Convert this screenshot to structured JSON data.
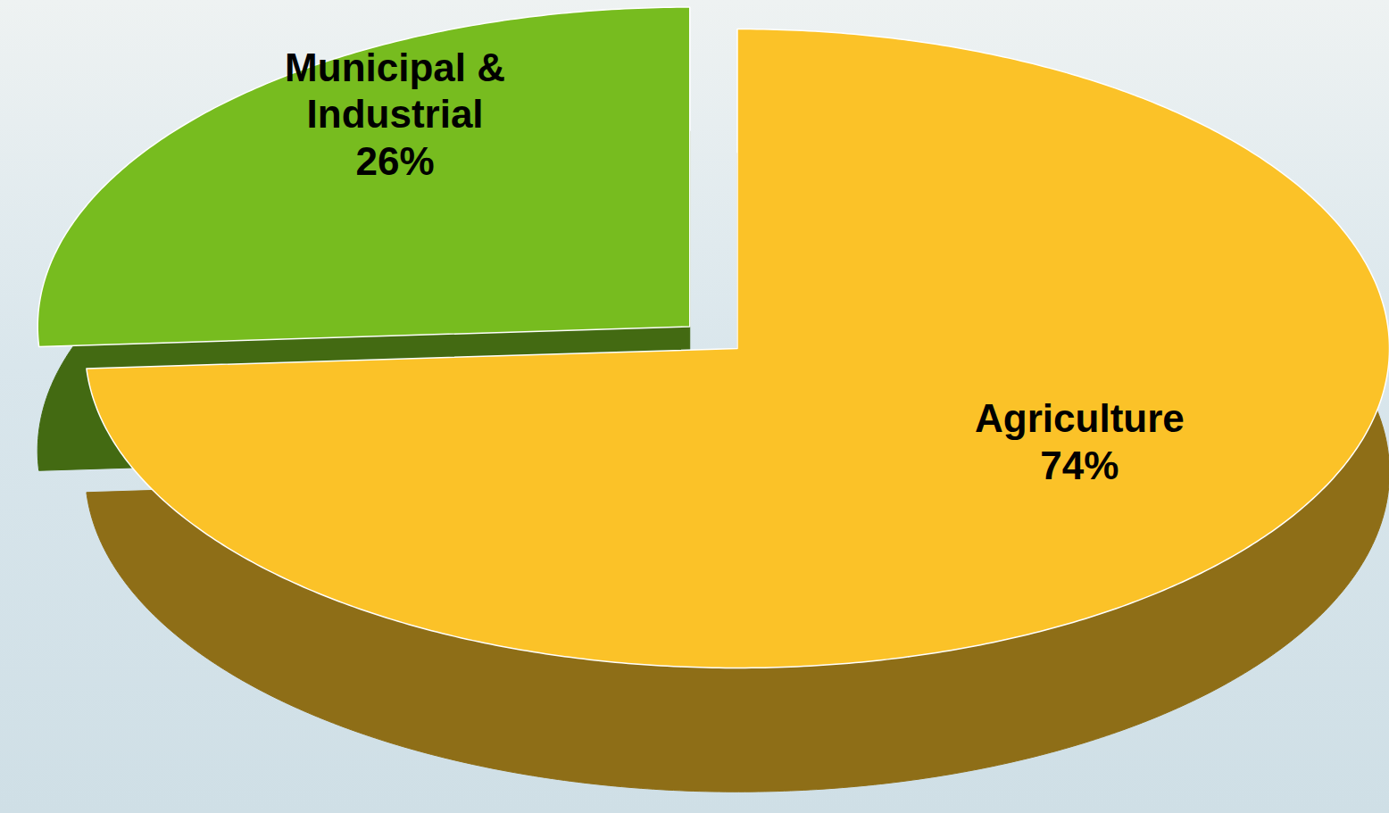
{
  "chart_data": {
    "type": "pie",
    "categories": [
      "Agriculture",
      "Municipal & Industrial"
    ],
    "values": [
      74,
      26
    ],
    "value_labels": [
      "74%",
      "26%"
    ],
    "colors": [
      "#fbc228",
      "#77bc1f"
    ],
    "data_labels": true
  }
}
